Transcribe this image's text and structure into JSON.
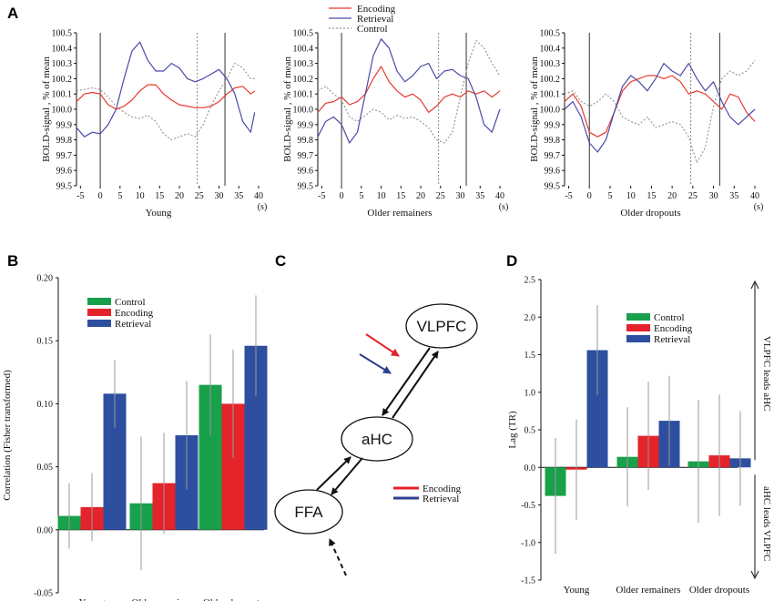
{
  "panel_labels": [
    "A",
    "B",
    "C",
    "D"
  ],
  "colors": {
    "control": "#999999",
    "encoding": "#e8392e",
    "retrieval": "#4a4aa8",
    "control_bar": "#19a04b",
    "encoding_bar": "#e4232b",
    "retrieval_bar": "#2e4fa0"
  },
  "chart_data": [
    {
      "id": "A1",
      "type": "line",
      "title": "Young",
      "xlabel": "Young",
      "xunit": "(s)",
      "ylabel": "BOLD-signal , % of mean",
      "xlim": [
        -6,
        40
      ],
      "ylim": [
        99.5,
        100.5
      ],
      "xticks": [
        -5,
        0,
        5,
        10,
        15,
        20,
        25,
        30,
        35,
        40
      ],
      "yticks": [
        "99.5",
        "99.6",
        "99.7",
        "99.8",
        "99.9",
        "100.0",
        "100.1",
        "100.2",
        "100.3",
        "100.4",
        "100.5"
      ],
      "vlines": [
        {
          "x": 0,
          "style": "solid"
        },
        {
          "x": 24.5,
          "style": "dotted"
        },
        {
          "x": 31.5,
          "style": "solid"
        }
      ],
      "legend": [
        "Encoding",
        "Retrieval",
        "Control"
      ],
      "series": [
        {
          "name": "Encoding",
          "x": [
            -6,
            -4,
            -2,
            0,
            2,
            4,
            6,
            8,
            10,
            12,
            14,
            16,
            18,
            20,
            22,
            24,
            26,
            28,
            30,
            32,
            34,
            36,
            38,
            39
          ],
          "y": [
            100.05,
            100.1,
            100.11,
            100.1,
            100.03,
            100.0,
            100.02,
            100.06,
            100.12,
            100.16,
            100.16,
            100.1,
            100.06,
            100.03,
            100.02,
            100.01,
            100.01,
            100.02,
            100.05,
            100.1,
            100.14,
            100.15,
            100.1,
            100.12
          ]
        },
        {
          "name": "Retrieval",
          "x": [
            -6,
            -4,
            -2,
            0,
            2,
            4,
            6,
            8,
            10,
            12,
            14,
            16,
            18,
            20,
            22,
            24,
            26,
            28,
            30,
            32,
            34,
            36,
            38,
            39
          ],
          "y": [
            99.88,
            99.82,
            99.85,
            99.84,
            99.9,
            100.0,
            100.2,
            100.38,
            100.44,
            100.32,
            100.25,
            100.25,
            100.3,
            100.27,
            100.2,
            100.18,
            100.2,
            100.23,
            100.26,
            100.2,
            100.1,
            99.92,
            99.85,
            99.98
          ]
        },
        {
          "name": "Control",
          "x": [
            -6,
            -4,
            -2,
            0,
            2,
            4,
            6,
            8,
            10,
            12,
            14,
            16,
            18,
            20,
            22,
            24,
            26,
            28,
            30,
            32,
            34,
            36,
            38,
            39
          ],
          "y": [
            100.12,
            100.13,
            100.14,
            100.13,
            100.08,
            100.02,
            99.98,
            99.95,
            99.94,
            99.96,
            99.92,
            99.84,
            99.8,
            99.82,
            99.84,
            99.82,
            99.9,
            100.02,
            100.12,
            100.2,
            100.3,
            100.27,
            100.2,
            100.2
          ]
        }
      ]
    },
    {
      "id": "A2",
      "type": "line",
      "title": "Older remainers",
      "xlabel": "Older remainers",
      "xunit": "(s)",
      "ylabel": "BOLD-signal , % of mean",
      "xlim": [
        -6,
        40
      ],
      "ylim": [
        99.5,
        100.5
      ],
      "xticks": [
        -5,
        0,
        5,
        10,
        15,
        20,
        25,
        30,
        35,
        40
      ],
      "yticks": [
        "99.5",
        "99.6",
        "99.7",
        "99.8",
        "99.9",
        "100.0",
        "100.1",
        "100.2",
        "100.3",
        "100.4",
        "100.5"
      ],
      "vlines": [
        {
          "x": 0,
          "style": "solid"
        },
        {
          "x": 24.5,
          "style": "dotted"
        },
        {
          "x": 31.5,
          "style": "solid"
        }
      ],
      "legend": [
        "Encoding",
        "Retrieval",
        "Control"
      ],
      "series": [
        {
          "name": "Encoding",
          "x": [
            -6,
            -4,
            -2,
            0,
            2,
            4,
            6,
            8,
            10,
            12,
            14,
            16,
            18,
            20,
            22,
            24,
            26,
            28,
            30,
            32,
            34,
            36,
            38,
            40
          ],
          "y": [
            99.98,
            100.04,
            100.05,
            100.08,
            100.03,
            100.05,
            100.1,
            100.2,
            100.28,
            100.18,
            100.12,
            100.08,
            100.1,
            100.06,
            99.98,
            100.02,
            100.08,
            100.1,
            100.08,
            100.12,
            100.1,
            100.12,
            100.08,
            100.12
          ]
        },
        {
          "name": "Retrieval",
          "x": [
            -6,
            -4,
            -2,
            0,
            2,
            4,
            6,
            8,
            10,
            12,
            14,
            16,
            18,
            20,
            22,
            24,
            26,
            28,
            30,
            32,
            34,
            36,
            38,
            40
          ],
          "y": [
            99.82,
            99.92,
            99.95,
            99.9,
            99.78,
            99.85,
            100.1,
            100.35,
            100.46,
            100.4,
            100.25,
            100.18,
            100.22,
            100.28,
            100.3,
            100.2,
            100.25,
            100.26,
            100.22,
            100.2,
            100.08,
            99.9,
            99.85,
            100.0
          ]
        },
        {
          "name": "Control",
          "x": [
            -6,
            -4,
            -2,
            0,
            2,
            4,
            6,
            8,
            10,
            12,
            14,
            16,
            18,
            20,
            22,
            24,
            26,
            28,
            30,
            32,
            34,
            36,
            38,
            40
          ],
          "y": [
            100.12,
            100.15,
            100.1,
            100.06,
            99.95,
            99.92,
            99.96,
            100.0,
            99.98,
            99.93,
            99.96,
            99.94,
            99.95,
            99.92,
            99.88,
            99.8,
            99.78,
            99.85,
            100.08,
            100.3,
            100.45,
            100.4,
            100.3,
            100.22
          ]
        }
      ]
    },
    {
      "id": "A3",
      "type": "line",
      "title": "Older dropouts",
      "xlabel": "Older dropouts",
      "xunit": "(s)",
      "ylabel": "BOLD-signal , % of mean",
      "xlim": [
        -6,
        40
      ],
      "ylim": [
        99.5,
        100.5
      ],
      "xticks": [
        -5,
        0,
        5,
        10,
        15,
        20,
        25,
        30,
        35,
        40
      ],
      "yticks": [
        "99.5",
        "99.6",
        "99.7",
        "99.8",
        "99.9",
        "100.0",
        "100.1",
        "100.2",
        "100.3",
        "100.4",
        "100.5"
      ],
      "vlines": [
        {
          "x": 0,
          "style": "solid"
        },
        {
          "x": 24.5,
          "style": "dotted"
        },
        {
          "x": 31.5,
          "style": "solid"
        }
      ],
      "legend": [
        "Encoding",
        "Retrieval",
        "Control"
      ],
      "series": [
        {
          "name": "Encoding",
          "x": [
            -6,
            -4,
            -2,
            0,
            2,
            4,
            6,
            8,
            10,
            12,
            14,
            16,
            18,
            20,
            22,
            24,
            26,
            28,
            30,
            32,
            34,
            36,
            38,
            40
          ],
          "y": [
            100.05,
            100.1,
            100.02,
            99.85,
            99.82,
            99.85,
            99.98,
            100.12,
            100.18,
            100.2,
            100.22,
            100.22,
            100.2,
            100.22,
            100.18,
            100.1,
            100.12,
            100.1,
            100.05,
            100.0,
            100.1,
            100.08,
            99.98,
            99.92
          ]
        },
        {
          "name": "Retrieval",
          "x": [
            -6,
            -4,
            -2,
            0,
            2,
            4,
            6,
            8,
            10,
            12,
            14,
            16,
            18,
            20,
            22,
            24,
            26,
            28,
            30,
            32,
            34,
            36,
            38,
            40
          ],
          "y": [
            100.0,
            100.05,
            99.95,
            99.78,
            99.72,
            99.8,
            99.98,
            100.15,
            100.22,
            100.18,
            100.12,
            100.2,
            100.3,
            100.25,
            100.22,
            100.3,
            100.2,
            100.12,
            100.18,
            100.05,
            99.95,
            99.9,
            99.95,
            100.0
          ]
        },
        {
          "name": "Control",
          "x": [
            -6,
            -4,
            -2,
            0,
            2,
            4,
            6,
            8,
            10,
            12,
            14,
            16,
            18,
            20,
            22,
            24,
            26,
            28,
            30,
            32,
            34,
            36,
            38,
            40
          ],
          "y": [
            100.1,
            100.12,
            100.05,
            100.02,
            100.05,
            100.1,
            100.05,
            99.95,
            99.92,
            99.9,
            99.95,
            99.88,
            99.9,
            99.92,
            99.9,
            99.82,
            99.65,
            99.75,
            100.02,
            100.2,
            100.25,
            100.22,
            100.25,
            100.32
          ]
        }
      ]
    },
    {
      "id": "B",
      "type": "bar",
      "ylabel": "Correlation (Fisher transformed)",
      "ylim": [
        -0.05,
        0.2
      ],
      "yticks": [
        "-0.05",
        "0.00",
        "0.05",
        "0.10",
        "0.15",
        "0.20"
      ],
      "categories": [
        "Young",
        "Older remainers",
        "Older dropouts"
      ],
      "legend": [
        "Control",
        "Encoding",
        "Retrieval"
      ],
      "series": [
        {
          "name": "Control",
          "values": [
            0.011,
            0.021,
            0.115
          ],
          "errors": [
            0.026,
            0.053,
            0.04
          ]
        },
        {
          "name": "Encoding",
          "values": [
            0.018,
            0.037,
            0.1
          ],
          "errors": [
            0.027,
            0.04,
            0.043
          ]
        },
        {
          "name": "Retrieval",
          "values": [
            0.108,
            0.075,
            0.146
          ],
          "errors": [
            0.027,
            0.043,
            0.04
          ]
        }
      ]
    },
    {
      "id": "D",
      "type": "bar",
      "ylabel": "Lag (TR)",
      "ylim": [
        -1.5,
        2.5
      ],
      "yticks": [
        "-1.5",
        "-1.0",
        "-0.5",
        "0.0",
        "0.5",
        "1.0",
        "1.5",
        "2.0",
        "2.5"
      ],
      "categories": [
        "Young",
        "Older remainers",
        "Older dropouts"
      ],
      "legend": [
        "Control",
        "Encoding",
        "Retrieval"
      ],
      "side_labels": {
        "up": "VLPFC leads aHC",
        "down": "aHC leads VLPFC"
      },
      "series": [
        {
          "name": "Control",
          "values": [
            -0.38,
            0.14,
            0.08
          ],
          "errors": [
            0.77,
            0.66,
            0.82
          ]
        },
        {
          "name": "Encoding",
          "values": [
            -0.03,
            0.42,
            0.16
          ],
          "errors": [
            0.67,
            0.72,
            0.81
          ]
        },
        {
          "name": "Retrieval",
          "values": [
            1.56,
            0.62,
            0.12
          ],
          "errors": [
            0.6,
            0.6,
            0.63
          ]
        }
      ]
    }
  ],
  "diagram": {
    "nodes": [
      "VLPFC",
      "aHC",
      "FFA"
    ],
    "legend": [
      "Encoding",
      "Retrieval"
    ]
  }
}
